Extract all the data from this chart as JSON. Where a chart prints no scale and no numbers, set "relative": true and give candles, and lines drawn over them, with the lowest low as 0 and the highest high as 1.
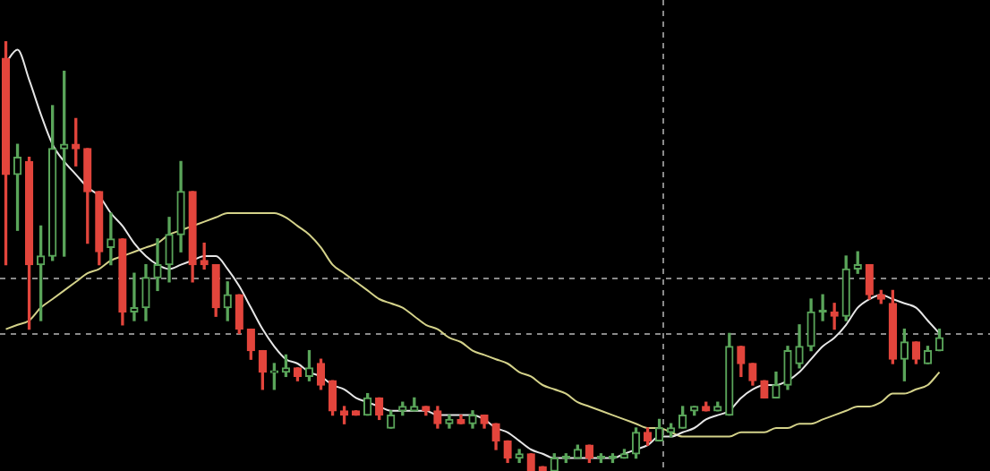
{
  "chart_data": {
    "type": "candlestick",
    "relative": true,
    "categories": [
      null,
      null,
      null,
      null,
      null,
      null,
      null,
      null,
      null,
      null,
      null,
      null,
      null,
      null,
      null,
      null,
      null,
      null,
      null,
      null,
      null,
      null,
      null,
      null,
      null,
      null,
      null,
      null,
      null,
      null,
      null,
      null,
      null,
      null,
      null,
      null,
      null,
      null,
      null,
      null,
      null,
      null,
      null,
      null,
      null,
      null,
      null,
      null,
      null,
      null,
      null,
      null,
      null,
      null,
      null,
      null,
      null,
      null,
      null,
      null,
      null,
      null,
      null,
      null,
      null,
      null,
      null,
      null,
      null,
      null,
      null,
      null,
      null,
      null,
      null,
      null,
      null,
      null,
      null,
      null,
      null
    ],
    "series": [
      {
        "type": "line",
        "color": "#e6e6e6",
        "values": [
          0.95,
          0.98,
          0.91,
          0.83,
          0.76,
          0.72,
          0.69,
          0.66,
          0.64,
          0.6,
          0.57,
          0.53,
          0.5,
          0.48,
          0.47,
          0.48,
          0.49,
          0.5,
          0.5,
          0.47,
          0.43,
          0.38,
          0.33,
          0.29,
          0.26,
          0.25,
          0.23,
          0.22,
          0.2,
          0.19,
          0.17,
          0.16,
          0.15,
          0.14,
          0.14,
          0.14,
          0.14,
          0.13,
          0.13,
          0.13,
          0.13,
          0.12,
          0.1,
          0.09,
          0.07,
          0.05,
          0.04,
          0.03,
          0.03,
          0.03,
          0.03,
          0.03,
          0.03,
          0.04,
          0.05,
          0.06,
          0.08,
          0.08,
          0.09,
          0.1,
          0.12,
          0.13,
          0.14,
          0.17,
          0.19,
          0.2,
          0.2,
          0.21,
          0.23,
          0.26,
          0.29,
          0.31,
          0.34,
          0.38,
          0.4,
          0.41,
          0.4,
          0.39,
          0.38,
          0.35,
          0.32
        ]
      },
      {
        "type": "line",
        "color": "#d4d28a",
        "values": [
          0.33,
          0.34,
          0.35,
          0.38,
          0.4,
          0.42,
          0.44,
          0.46,
          0.47,
          0.49,
          0.5,
          0.51,
          0.52,
          0.53,
          0.55,
          0.56,
          0.57,
          0.58,
          0.59,
          0.6,
          0.6,
          0.6,
          0.6,
          0.6,
          0.59,
          0.57,
          0.55,
          0.52,
          0.48,
          0.46,
          0.44,
          0.42,
          0.4,
          0.39,
          0.38,
          0.36,
          0.34,
          0.33,
          0.31,
          0.3,
          0.28,
          0.27,
          0.26,
          0.25,
          0.23,
          0.22,
          0.2,
          0.19,
          0.18,
          0.16,
          0.15,
          0.14,
          0.13,
          0.12,
          0.11,
          0.1,
          0.1,
          0.09,
          0.08,
          0.08,
          0.08,
          0.08,
          0.08,
          0.09,
          0.09,
          0.09,
          0.1,
          0.1,
          0.11,
          0.11,
          0.12,
          0.13,
          0.14,
          0.15,
          0.15,
          0.16,
          0.18,
          0.18,
          0.19,
          0.2,
          0.23
        ]
      },
      {
        "type": "candlestick",
        "ohlc": [
          [
            0.96,
            1,
            0.48,
            0.69
          ],
          [
            0.69,
            0.76,
            0.56,
            0.73
          ],
          [
            0.72,
            0.73,
            0.33,
            0.48
          ],
          [
            0.48,
            0.57,
            0.35,
            0.5
          ],
          [
            0.5,
            0.85,
            0.49,
            0.75
          ],
          [
            0.75,
            0.93,
            0.5,
            0.76
          ],
          [
            0.76,
            0.82,
            0.71,
            0.75
          ],
          [
            0.75,
            0.75,
            0.53,
            0.65
          ],
          [
            0.65,
            0.65,
            0.48,
            0.51
          ],
          [
            0.52,
            0.6,
            0.48,
            0.54
          ],
          [
            0.54,
            0.54,
            0.34,
            0.37
          ],
          [
            0.37,
            0.46,
            0.35,
            0.38
          ],
          [
            0.38,
            0.48,
            0.35,
            0.45
          ],
          [
            0.45,
            0.54,
            0.42,
            0.48
          ],
          [
            0.48,
            0.59,
            0.44,
            0.55
          ],
          [
            0.55,
            0.72,
            0.51,
            0.65
          ],
          [
            0.65,
            0.65,
            0.44,
            0.48
          ],
          [
            0.49,
            0.53,
            0.47,
            0.48
          ],
          [
            0.48,
            0.48,
            0.36,
            0.38
          ],
          [
            0.38,
            0.44,
            0.35,
            0.41
          ],
          [
            0.41,
            0.41,
            0.32,
            0.33
          ],
          [
            0.33,
            0.33,
            0.26,
            0.28
          ],
          [
            0.28,
            0.28,
            0.19,
            0.23
          ],
          [
            0.229,
            0.25,
            0.19,
            0.233
          ],
          [
            0.23,
            0.27,
            0.22,
            0.24
          ],
          [
            0.24,
            0.24,
            0.21,
            0.22
          ],
          [
            0.22,
            0.28,
            0.21,
            0.24
          ],
          [
            0.25,
            0.26,
            0.19,
            0.2
          ],
          [
            0.21,
            0.21,
            0.13,
            0.14
          ],
          [
            0.14,
            0.15,
            0.11,
            0.13
          ],
          [
            0.14,
            0.14,
            0.13,
            0.13
          ],
          [
            0.13,
            0.18,
            0.13,
            0.17
          ],
          [
            0.17,
            0.17,
            0.12,
            0.13
          ],
          [
            0.1,
            0.14,
            0.1,
            0.13
          ],
          [
            0.14,
            0.16,
            0.13,
            0.15
          ],
          [
            0.14,
            0.17,
            0.14,
            0.15
          ],
          [
            0.15,
            0.15,
            0.13,
            0.14
          ],
          [
            0.14,
            0.15,
            0.1,
            0.11
          ],
          [
            0.11,
            0.13,
            0.1,
            0.12
          ],
          [
            0.12,
            0.13,
            0.11,
            0.11
          ],
          [
            0.11,
            0.14,
            0.1,
            0.13
          ],
          [
            0.13,
            0.13,
            0.1,
            0.11
          ],
          [
            0.11,
            0.11,
            0.05,
            0.07
          ],
          [
            0.07,
            0.07,
            0.02,
            0.03
          ],
          [
            0.03,
            0.05,
            0.02,
            0.04
          ],
          [
            0.04,
            0.04,
            0,
            0
          ],
          [
            0.01,
            0.01,
            0,
            0
          ],
          [
            0,
            0.04,
            0,
            0.03
          ],
          [
            0.03,
            0.04,
            0.02,
            0.03
          ],
          [
            0.03,
            0.06,
            0.03,
            0.05
          ],
          [
            0.06,
            0.06,
            0.02,
            0.03
          ],
          [
            0.03,
            0.04,
            0.02,
            0.03
          ],
          [
            0.03,
            0.04,
            0.02,
            0.03
          ],
          [
            0.03,
            0.05,
            0.03,
            0.04
          ],
          [
            0.04,
            0.1,
            0.03,
            0.09
          ],
          [
            0.09,
            0.1,
            0.06,
            0.07
          ],
          [
            0.07,
            0.12,
            0.07,
            0.1
          ],
          [
            0.09,
            0.11,
            0.08,
            0.1
          ],
          [
            0.1,
            0.15,
            0.1,
            0.13
          ],
          [
            0.14,
            0.15,
            0.13,
            0.15
          ],
          [
            0.15,
            0.16,
            0.14,
            0.14
          ],
          [
            0.14,
            0.16,
            0.14,
            0.15
          ],
          [
            0.13,
            0.32,
            0.13,
            0.29
          ],
          [
            0.29,
            0.29,
            0.22,
            0.25
          ],
          [
            0.25,
            0.25,
            0.2,
            0.21
          ],
          [
            0.21,
            0.21,
            0.17,
            0.17
          ],
          [
            0.17,
            0.23,
            0.17,
            0.2
          ],
          [
            0.2,
            0.29,
            0.19,
            0.28
          ],
          [
            0.25,
            0.34,
            0.24,
            0.29
          ],
          [
            0.29,
            0.4,
            0.28,
            0.37
          ],
          [
            0.37,
            0.41,
            0.35,
            0.37
          ],
          [
            0.37,
            0.39,
            0.33,
            0.36
          ],
          [
            0.36,
            0.5,
            0.35,
            0.47
          ],
          [
            0.47,
            0.51,
            0.46,
            0.48
          ],
          [
            0.48,
            0.48,
            0.4,
            0.41
          ],
          [
            0.41,
            0.42,
            0.39,
            0.4
          ],
          [
            0.39,
            0.42,
            0.25,
            0.26
          ],
          [
            0.26,
            0.33,
            0.21,
            0.3
          ],
          [
            0.3,
            0.3,
            0.25,
            0.26
          ],
          [
            0.25,
            0.29,
            0.25,
            0.28
          ],
          [
            0.28,
            0.33,
            0.28,
            0.31
          ]
        ],
        "colors": [
          "#e2453c",
          "#5aa55a",
          "#e2453c",
          "#5aa55a",
          "#5aa55a",
          "#5aa55a",
          "#e2453c",
          "#e2453c",
          "#e2453c",
          "#5aa55a",
          "#e2453c",
          "#5aa55a",
          "#5aa55a",
          "#5aa55a",
          "#5aa55a",
          "#5aa55a",
          "#e2453c",
          "#e2453c",
          "#e2453c",
          "#5aa55a",
          "#e2453c",
          "#e2453c",
          "#e2453c",
          "#5aa55a",
          "#5aa55a",
          "#e2453c",
          "#5aa55a",
          "#e2453c",
          "#e2453c",
          "#e2453c",
          "#e2453c",
          "#5aa55a",
          "#e2453c",
          "#5aa55a",
          "#5aa55a",
          "#5aa55a",
          "#e2453c",
          "#e2453c",
          "#5aa55a",
          "#e2453c",
          "#5aa55a",
          "#e2453c",
          "#e2453c",
          "#e2453c",
          "#5aa55a",
          "#e2453c",
          "#e2453c",
          "#5aa55a",
          "#5aa55a",
          "#5aa55a",
          "#e2453c",
          "#5aa55a",
          "#5aa55a",
          "#5aa55a",
          "#5aa55a",
          "#e2453c",
          "#5aa55a",
          "#5aa55a",
          "#5aa55a",
          "#5aa55a",
          "#e2453c",
          "#5aa55a",
          "#5aa55a",
          "#e2453c",
          "#e2453c",
          "#e2453c",
          "#5aa55a",
          "#5aa55a",
          "#5aa55a",
          "#5aa55a",
          "#5aa55a",
          "#e2453c",
          "#5aa55a",
          "#5aa55a",
          "#e2453c",
          "#e2453c",
          "#e2453c",
          "#5aa55a",
          "#e2453c",
          "#5aa55a",
          "#5aa55a"
        ]
      }
    ],
    "ref_lines": [
      {
        "axis": "y",
        "value": 0.45,
        "color": "#8a8a8a",
        "line_style": "dashed"
      },
      {
        "axis": "y",
        "value": 0.32,
        "color": "#8a8a8a",
        "line_style": "dashed"
      }
    ]
  }
}
